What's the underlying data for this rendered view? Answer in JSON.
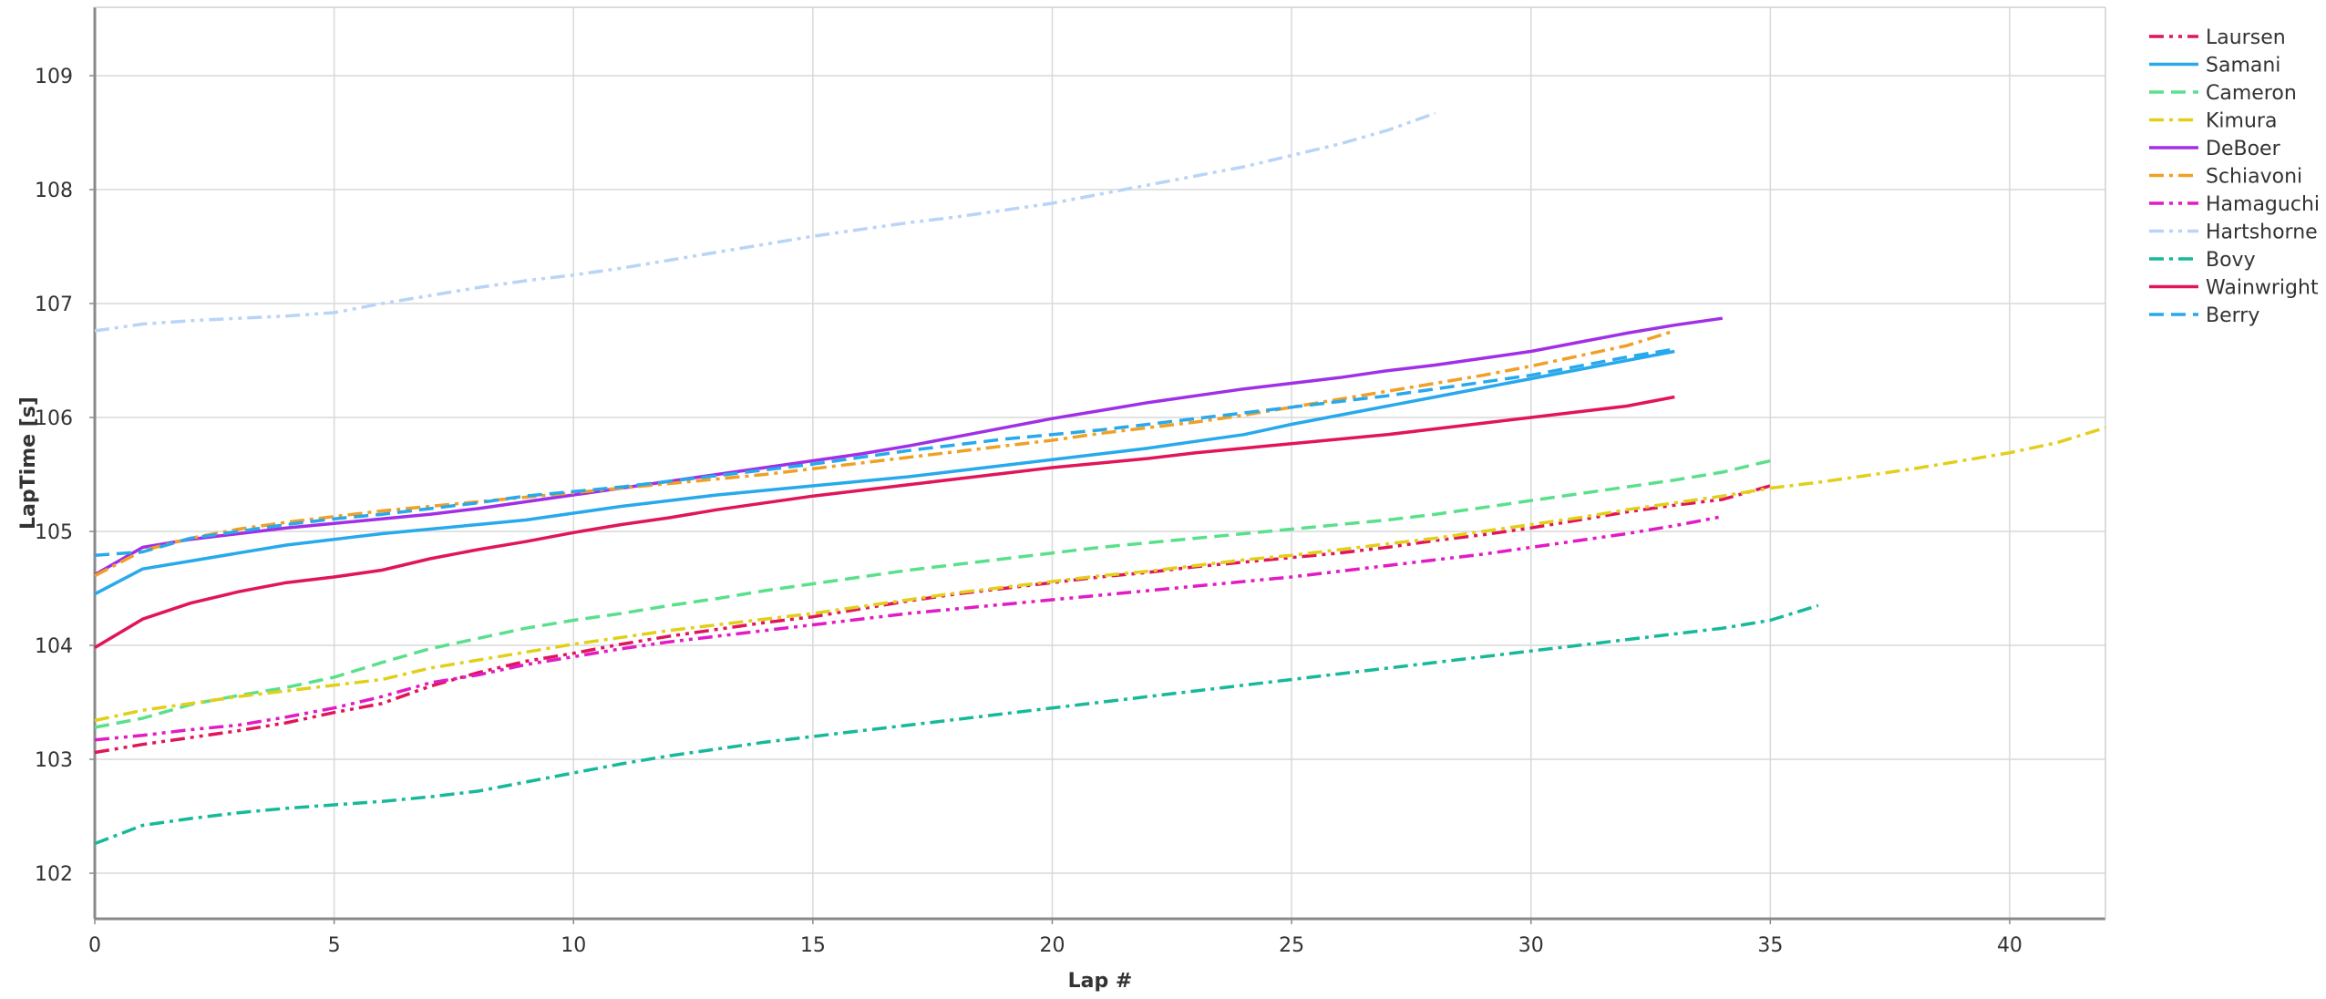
{
  "chart_data": {
    "type": "line",
    "title": "",
    "xlabel": "Lap #",
    "ylabel": "LapTime [s]",
    "xlim": [
      0,
      42
    ],
    "ylim": [
      101.6,
      109.6
    ],
    "xticks": [
      0,
      5,
      10,
      15,
      20,
      25,
      30,
      35,
      40
    ],
    "yticks": [
      102,
      103,
      104,
      105,
      106,
      107,
      108,
      109
    ],
    "grid": true,
    "legend_position": "right-top",
    "series": [
      {
        "name": "Laursen",
        "color": "#e0155a",
        "dash": "dashdotdot",
        "x": [
          0,
          1,
          2,
          3,
          4,
          5,
          6,
          7,
          8,
          9,
          10,
          11,
          12,
          13,
          14,
          15,
          16,
          17,
          18,
          19,
          20,
          21,
          22,
          23,
          24,
          25,
          26,
          27,
          28,
          29,
          30,
          31,
          32,
          33,
          34,
          35
        ],
        "y": [
          103.06,
          103.13,
          103.19,
          103.25,
          103.32,
          103.41,
          103.49,
          103.64,
          103.76,
          103.86,
          103.93,
          104.01,
          104.08,
          104.14,
          104.2,
          104.25,
          104.32,
          104.39,
          104.45,
          104.5,
          104.55,
          104.6,
          104.64,
          104.69,
          104.73,
          104.77,
          104.81,
          104.86,
          104.92,
          104.97,
          105.03,
          105.1,
          105.17,
          105.23,
          105.28,
          105.4
        ]
      },
      {
        "name": "Samani",
        "color": "#27a9ec",
        "dash": "solid",
        "x": [
          0,
          1,
          2,
          3,
          4,
          5,
          6,
          7,
          8,
          9,
          10,
          11,
          12,
          13,
          14,
          15,
          16,
          17,
          18,
          19,
          20,
          21,
          22,
          23,
          24,
          25,
          26,
          27,
          28,
          29,
          30,
          31,
          32,
          33
        ],
        "y": [
          104.45,
          104.67,
          104.74,
          104.81,
          104.88,
          104.93,
          104.98,
          105.02,
          105.06,
          105.1,
          105.16,
          105.22,
          105.27,
          105.32,
          105.36,
          105.4,
          105.44,
          105.48,
          105.53,
          105.58,
          105.63,
          105.68,
          105.73,
          105.79,
          105.85,
          105.94,
          106.02,
          106.1,
          106.18,
          106.26,
          106.34,
          106.42,
          106.5,
          106.58
        ]
      },
      {
        "name": "Cameron",
        "color": "#5ae08b",
        "dash": "dash",
        "x": [
          0,
          1,
          2,
          3,
          4,
          5,
          6,
          7,
          8,
          9,
          10,
          11,
          12,
          13,
          14,
          15,
          16,
          17,
          18,
          19,
          20,
          21,
          22,
          23,
          24,
          25,
          26,
          27,
          28,
          29,
          30,
          31,
          32,
          33,
          34,
          35
        ],
        "y": [
          103.28,
          103.36,
          103.48,
          103.56,
          103.63,
          103.72,
          103.85,
          103.97,
          104.06,
          104.15,
          104.22,
          104.28,
          104.35,
          104.41,
          104.48,
          104.54,
          104.6,
          104.66,
          104.71,
          104.76,
          104.81,
          104.86,
          104.9,
          104.94,
          104.98,
          105.02,
          105.06,
          105.1,
          105.15,
          105.21,
          105.27,
          105.33,
          105.39,
          105.45,
          105.52,
          105.62
        ]
      },
      {
        "name": "Kimura",
        "color": "#e2cf1a",
        "dash": "dashdot",
        "x": [
          0,
          1,
          2,
          3,
          4,
          5,
          6,
          7,
          8,
          9,
          10,
          11,
          12,
          13,
          14,
          15,
          16,
          17,
          18,
          19,
          20,
          21,
          22,
          23,
          24,
          25,
          26,
          27,
          28,
          29,
          30,
          31,
          32,
          33,
          34,
          35,
          36,
          37,
          38,
          39,
          40,
          41,
          42
        ],
        "y": [
          103.34,
          103.43,
          103.49,
          103.55,
          103.6,
          103.65,
          103.7,
          103.8,
          103.87,
          103.94,
          104.01,
          104.07,
          104.13,
          104.18,
          104.23,
          104.28,
          104.34,
          104.4,
          104.46,
          104.51,
          104.56,
          104.61,
          104.65,
          104.7,
          104.75,
          104.79,
          104.84,
          104.89,
          104.94,
          105.0,
          105.06,
          105.12,
          105.19,
          105.25,
          105.31,
          105.38,
          105.43,
          105.49,
          105.55,
          105.62,
          105.69,
          105.78,
          105.91
        ]
      },
      {
        "name": "DeBoer",
        "color": "#a02fe6",
        "dash": "solid",
        "x": [
          0,
          1,
          2,
          3,
          4,
          5,
          6,
          7,
          8,
          9,
          10,
          11,
          12,
          13,
          14,
          15,
          16,
          17,
          18,
          19,
          20,
          21,
          22,
          23,
          24,
          25,
          26,
          27,
          28,
          29,
          30,
          31,
          32,
          33,
          34
        ],
        "y": [
          104.62,
          104.86,
          104.93,
          104.98,
          105.03,
          105.07,
          105.11,
          105.15,
          105.2,
          105.26,
          105.32,
          105.38,
          105.44,
          105.5,
          105.56,
          105.62,
          105.68,
          105.75,
          105.83,
          105.91,
          105.99,
          106.06,
          106.13,
          106.19,
          106.25,
          106.3,
          106.35,
          106.41,
          106.46,
          106.52,
          106.58,
          106.66,
          106.74,
          106.81,
          106.87
        ]
      },
      {
        "name": "Schiavoni",
        "color": "#f0a024",
        "dash": "dashdot",
        "x": [
          0,
          1,
          2,
          3,
          4,
          5,
          6,
          7,
          8,
          9,
          10,
          11,
          12,
          13,
          14,
          15,
          16,
          17,
          18,
          19,
          20,
          21,
          22,
          23,
          24,
          25,
          26,
          27,
          28,
          29,
          30,
          31,
          32,
          33
        ],
        "y": [
          104.61,
          104.83,
          104.94,
          105.02,
          105.08,
          105.13,
          105.18,
          105.22,
          105.26,
          105.3,
          105.34,
          105.38,
          105.42,
          105.46,
          105.5,
          105.55,
          105.6,
          105.65,
          105.7,
          105.75,
          105.8,
          105.86,
          105.91,
          105.96,
          106.02,
          106.09,
          106.16,
          106.23,
          106.3,
          106.37,
          106.45,
          106.54,
          106.63,
          106.76
        ]
      },
      {
        "name": "Hamaguchi",
        "color": "#e21bc5",
        "dash": "dashdotdot",
        "x": [
          0,
          1,
          2,
          3,
          4,
          5,
          6,
          7,
          8,
          9,
          10,
          11,
          12,
          13,
          14,
          15,
          16,
          17,
          18,
          19,
          20,
          21,
          22,
          23,
          24,
          25,
          26,
          27,
          28,
          29,
          30,
          31,
          32,
          33,
          34
        ],
        "y": [
          103.17,
          103.21,
          103.26,
          103.3,
          103.37,
          103.45,
          103.55,
          103.67,
          103.74,
          103.83,
          103.9,
          103.97,
          104.03,
          104.08,
          104.13,
          104.18,
          104.23,
          104.28,
          104.32,
          104.36,
          104.4,
          104.44,
          104.48,
          104.52,
          104.56,
          104.6,
          104.65,
          104.7,
          104.75,
          104.8,
          104.86,
          104.92,
          104.98,
          105.05,
          105.13
        ]
      },
      {
        "name": "Hartshorne",
        "color": "#b8d4f7",
        "dash": "dashdotdot",
        "x": [
          0,
          1,
          2,
          3,
          4,
          5,
          6,
          7,
          8,
          9,
          10,
          11,
          12,
          13,
          14,
          15,
          16,
          17,
          18,
          19,
          20,
          21,
          22,
          23,
          24,
          25,
          26,
          27,
          28
        ],
        "y": [
          106.76,
          106.82,
          106.85,
          106.87,
          106.89,
          106.92,
          107.0,
          107.07,
          107.14,
          107.2,
          107.25,
          107.31,
          107.38,
          107.45,
          107.52,
          107.59,
          107.65,
          107.71,
          107.76,
          107.82,
          107.88,
          107.96,
          108.04,
          108.12,
          108.2,
          108.3,
          108.4,
          108.52,
          108.67
        ]
      },
      {
        "name": "Bovy",
        "color": "#17b99a",
        "dash": "dashdot",
        "x": [
          0,
          1,
          2,
          3,
          4,
          5,
          6,
          7,
          8,
          9,
          10,
          11,
          12,
          13,
          14,
          15,
          16,
          17,
          18,
          19,
          20,
          21,
          22,
          23,
          24,
          25,
          26,
          27,
          28,
          29,
          30,
          31,
          32,
          33,
          34,
          35,
          36
        ],
        "y": [
          102.26,
          102.42,
          102.48,
          102.53,
          102.57,
          102.6,
          102.63,
          102.67,
          102.72,
          102.8,
          102.88,
          102.96,
          103.03,
          103.09,
          103.15,
          103.2,
          103.25,
          103.3,
          103.35,
          103.4,
          103.45,
          103.5,
          103.55,
          103.6,
          103.65,
          103.7,
          103.75,
          103.8,
          103.85,
          103.9,
          103.95,
          104.0,
          104.05,
          104.1,
          104.15,
          104.22,
          104.35
        ]
      },
      {
        "name": "Wainwright",
        "color": "#e0155a",
        "dash": "solid",
        "x": [
          0,
          1,
          2,
          3,
          4,
          5,
          6,
          7,
          8,
          9,
          10,
          11,
          12,
          13,
          14,
          15,
          16,
          17,
          18,
          19,
          20,
          21,
          22,
          23,
          24,
          25,
          26,
          27,
          28,
          29,
          30,
          31,
          32,
          33
        ],
        "y": [
          103.98,
          104.23,
          104.37,
          104.47,
          104.55,
          104.6,
          104.66,
          104.76,
          104.84,
          104.91,
          104.99,
          105.06,
          105.12,
          105.19,
          105.25,
          105.31,
          105.36,
          105.41,
          105.46,
          105.51,
          105.56,
          105.6,
          105.64,
          105.69,
          105.73,
          105.77,
          105.81,
          105.85,
          105.9,
          105.95,
          106.0,
          106.05,
          106.1,
          106.18
        ]
      },
      {
        "name": "Berry",
        "color": "#27a9ec",
        "dash": "dash",
        "x": [
          0,
          1,
          2,
          3,
          4,
          5,
          6,
          7,
          8,
          9,
          10,
          11,
          12,
          13,
          14,
          15,
          16,
          17,
          18,
          19,
          20,
          21,
          22,
          23,
          24,
          25,
          26,
          27,
          28,
          29,
          30,
          31,
          32,
          33
        ],
        "y": [
          104.79,
          104.82,
          104.94,
          105.0,
          105.06,
          105.11,
          105.15,
          105.2,
          105.25,
          105.31,
          105.35,
          105.39,
          105.44,
          105.49,
          105.54,
          105.59,
          105.65,
          105.71,
          105.76,
          105.81,
          105.85,
          105.89,
          105.94,
          105.99,
          106.04,
          106.09,
          106.14,
          106.19,
          106.25,
          106.31,
          106.37,
          106.45,
          106.53,
          106.6
        ]
      }
    ]
  }
}
